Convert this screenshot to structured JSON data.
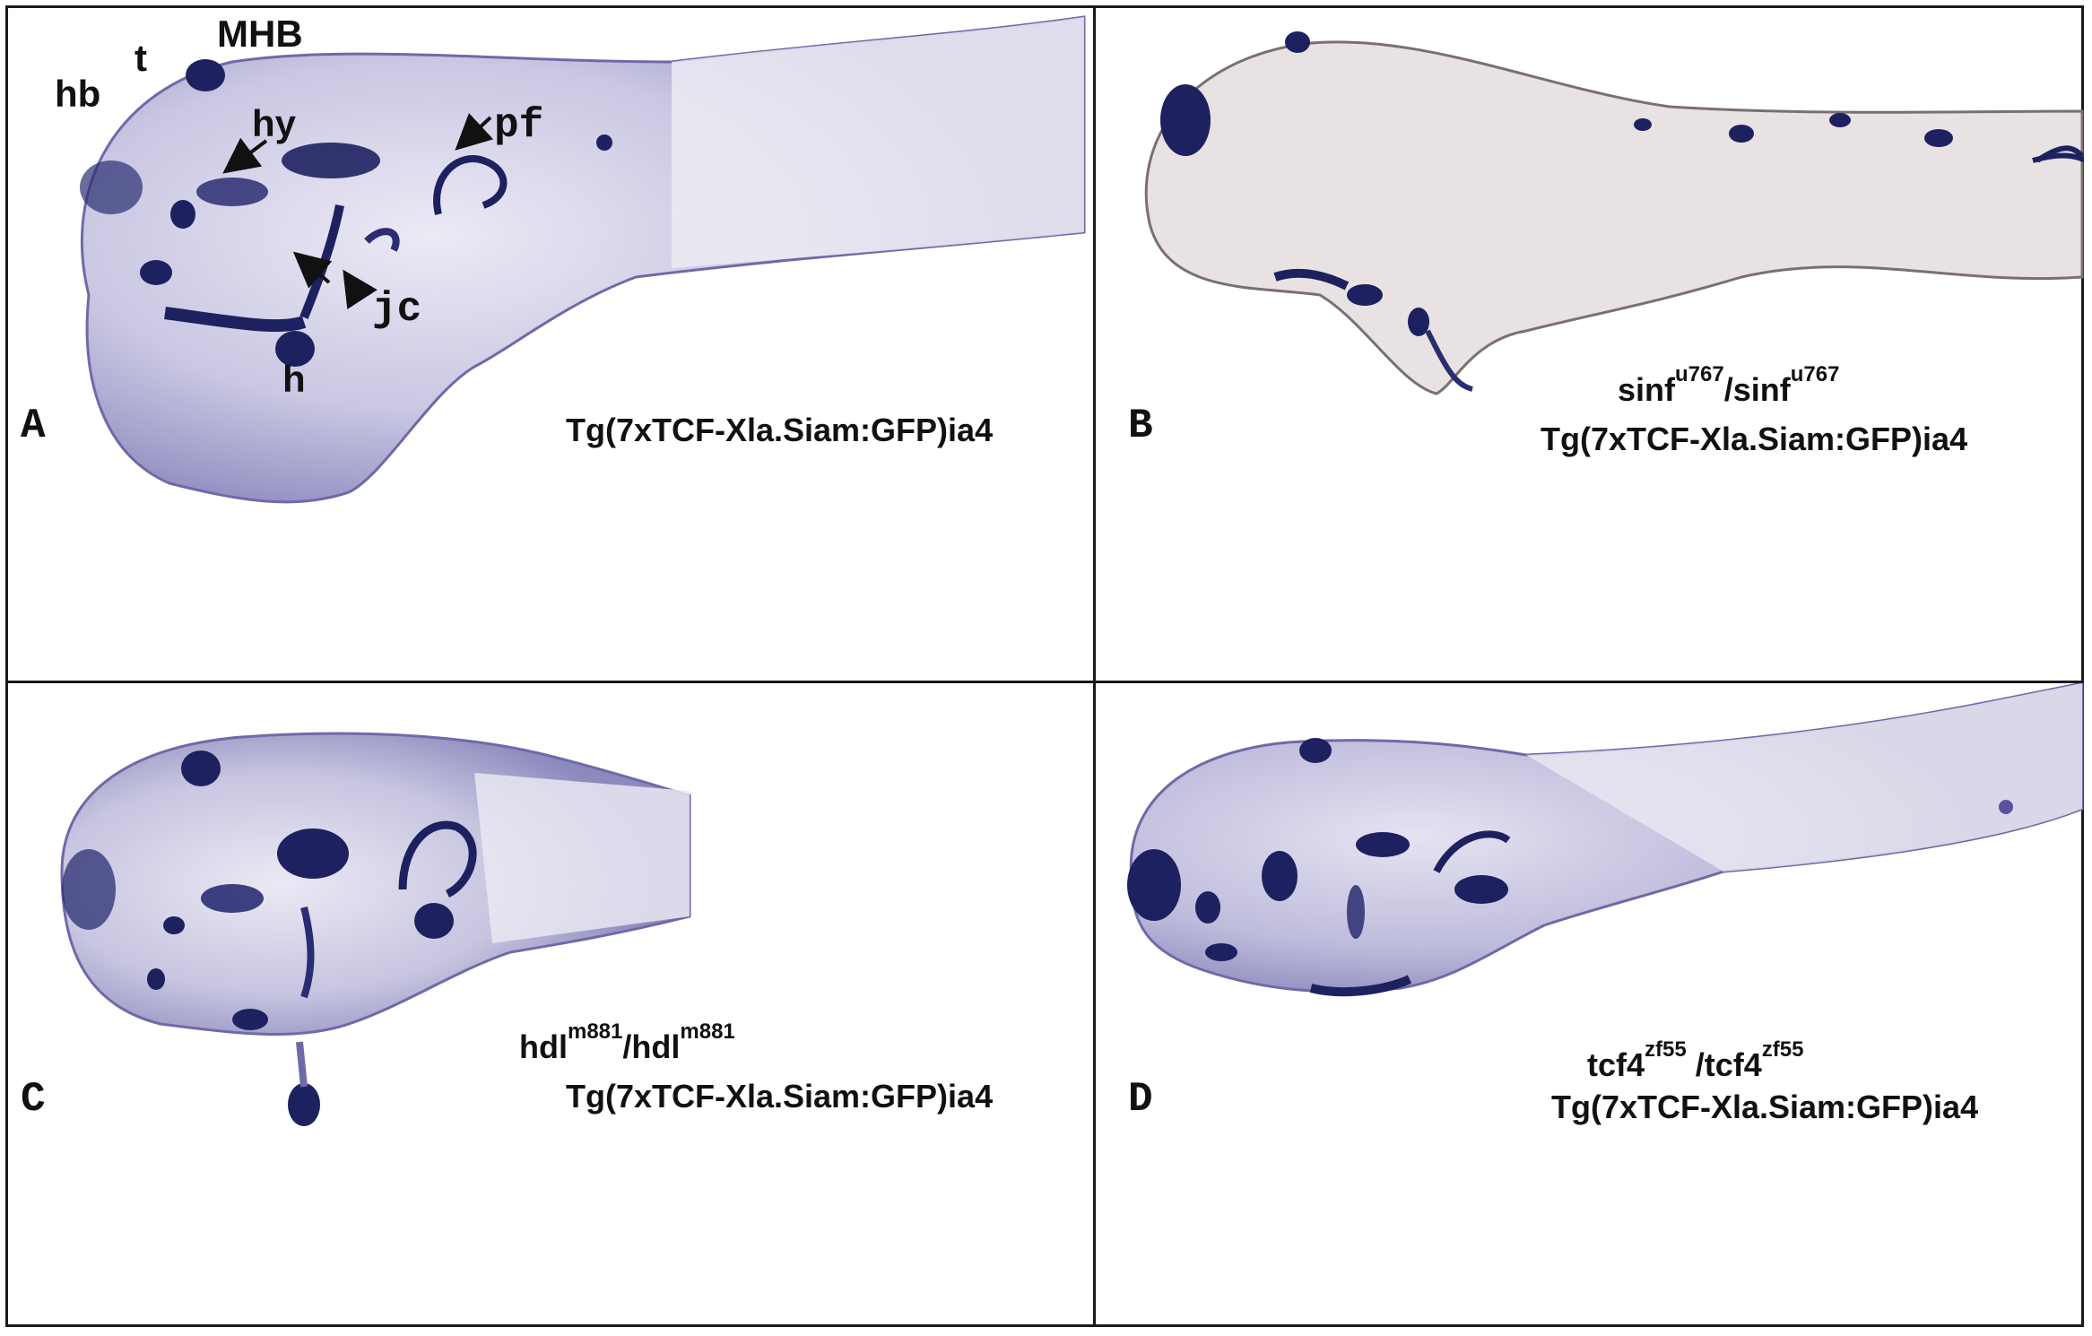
{
  "panels": {
    "a": {
      "letter": "A",
      "genotype": "Tg(7xTCF-Xla.Siam:GFP)ia4",
      "labels": {
        "mhb": "MHB",
        "t": "t",
        "hb": "hb",
        "hy": "hy",
        "pf": "pf",
        "jc": "jc",
        "h": "h"
      }
    },
    "b": {
      "letter": "B",
      "mutant": {
        "base": "sinf",
        "sup": "u767",
        "sep": "/",
        "base2": "sinf",
        "sup2": "u767"
      },
      "genotype": "Tg(7xTCF-Xla.Siam:GFP)ia4"
    },
    "c": {
      "letter": "C",
      "mutant": {
        "base": "hdl",
        "sup": "m881",
        "sep": "/",
        "base2": "hdl",
        "sup2": "m881"
      },
      "genotype": "Tg(7xTCF-Xla.Siam:GFP)ia4"
    },
    "d": {
      "letter": "D",
      "mutant": {
        "base": "tcf4",
        "sup": "zf55",
        "sep": " /",
        "base2": "tcf4",
        "sup2": "zf55"
      },
      "genotype": "Tg(7xTCF-Xla.Siam:GFP)ia4"
    }
  },
  "colors": {
    "stain": "#1e2160",
    "tissue": "#d9d8ec",
    "border": "#1a1a1a"
  }
}
